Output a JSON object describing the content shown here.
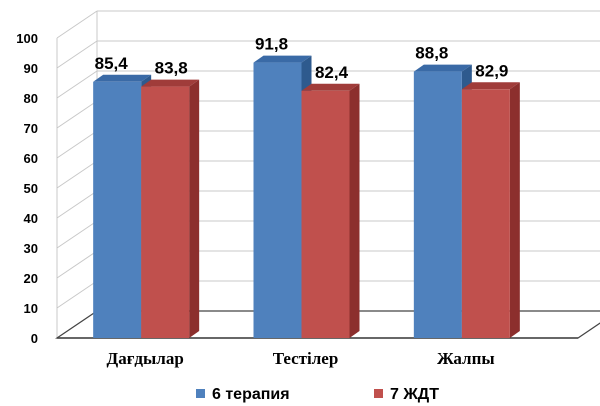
{
  "chart_data": {
    "type": "bar",
    "categories": [
      "Дағдылар",
      "Тестілер",
      "Жалпы"
    ],
    "series": [
      {
        "name": "6 терапия",
        "values": [
          85.4,
          91.8,
          88.8
        ],
        "labels": [
          "85,4",
          "91,8",
          "88,8"
        ]
      },
      {
        "name": "7 ЖДТ",
        "values": [
          83.8,
          82.4,
          82.9
        ],
        "labels": [
          "83,8",
          "82,4",
          "82,9"
        ]
      }
    ],
    "ylim": [
      0,
      100
    ],
    "yticks": [
      "0",
      "10",
      "20",
      "30",
      "40",
      "50",
      "60",
      "70",
      "80",
      "90",
      "100"
    ],
    "grid": true,
    "legend_position": "bottom",
    "style": "3d-clustered-column"
  },
  "colors": {
    "series1_front": "#4F81BD",
    "series1_top": "#3A6AA6",
    "series1_side": "#2E5A8E",
    "series2_front": "#C0504D",
    "series2_top": "#A03C3A",
    "series2_side": "#8C2F2D",
    "grid": "#c8c8c8",
    "floor": "#444444"
  }
}
